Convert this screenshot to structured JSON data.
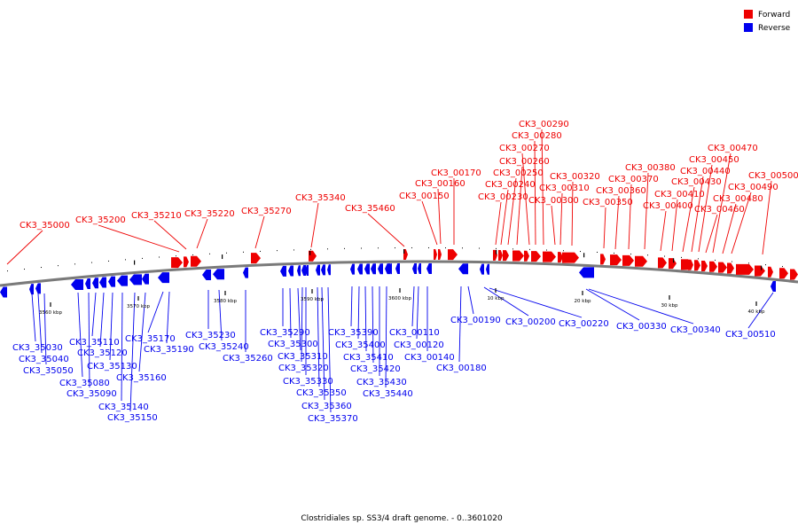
{
  "colors": {
    "forward": "#ee0000",
    "reverse": "#0000ee",
    "backbone": "#7a7a7a"
  },
  "legend": [
    {
      "key": "forward",
      "label": "Forward"
    },
    {
      "key": "reverse",
      "label": "Reverse"
    }
  ],
  "caption": "Clostridiales sp. SS3/4 draft genome. - 0..3601020",
  "ticks": [
    "3560 kbp",
    "3570 kbp",
    "3580 kbp",
    "3590 kbp",
    "3600 kbp",
    "10 kbp",
    "20 kbp",
    "30 kbp",
    "40 kbp"
  ],
  "forward_labels": [
    "CK3_35000",
    "CK3_35200",
    "CK3_35210",
    "CK3_35220",
    "CK3_35270",
    "CK3_35340",
    "CK3_35460",
    "CK3_00150",
    "CK3_00160",
    "CK3_00170",
    "CK3_00230",
    "CK3_00240",
    "CK3_00250",
    "CK3_00260",
    "CK3_00270",
    "CK3_00280",
    "CK3_00290",
    "CK3_00300",
    "CK3_00310",
    "CK3_00320",
    "CK3_00350",
    "CK3_00360",
    "CK3_00370",
    "CK3_00380",
    "CK3_00400",
    "CK3_00410",
    "CK3_00430",
    "CK3_00440",
    "CK3_00450",
    "CK3_00460",
    "CK3_00470",
    "CK3_00480",
    "CK3_00490",
    "CK3_00500"
  ],
  "reverse_labels": [
    "CK3_35030",
    "CK3_35040",
    "CK3_35050",
    "CK3_35080",
    "CK3_35090",
    "CK3_35110",
    "CK3_35120",
    "CK3_35130",
    "CK3_35140",
    "CK3_35150",
    "CK3_35160",
    "CK3_35170",
    "CK3_35190",
    "CK3_35230",
    "CK3_35240",
    "CK3_35260",
    "CK3_35290",
    "CK3_35300",
    "CK3_35310",
    "CK3_35320",
    "CK3_35330",
    "CK3_35350",
    "CK3_35360",
    "CK3_35370",
    "CK3_35390",
    "CK3_35400",
    "CK3_35410",
    "CK3_35420",
    "CK3_35430",
    "CK3_35440",
    "CK3_00110",
    "CK3_00120",
    "CK3_00140",
    "CK3_00180",
    "CK3_00190",
    "CK3_00200",
    "CK3_00220",
    "CK3_00330",
    "CK3_00340",
    "CK3_00510"
  ]
}
